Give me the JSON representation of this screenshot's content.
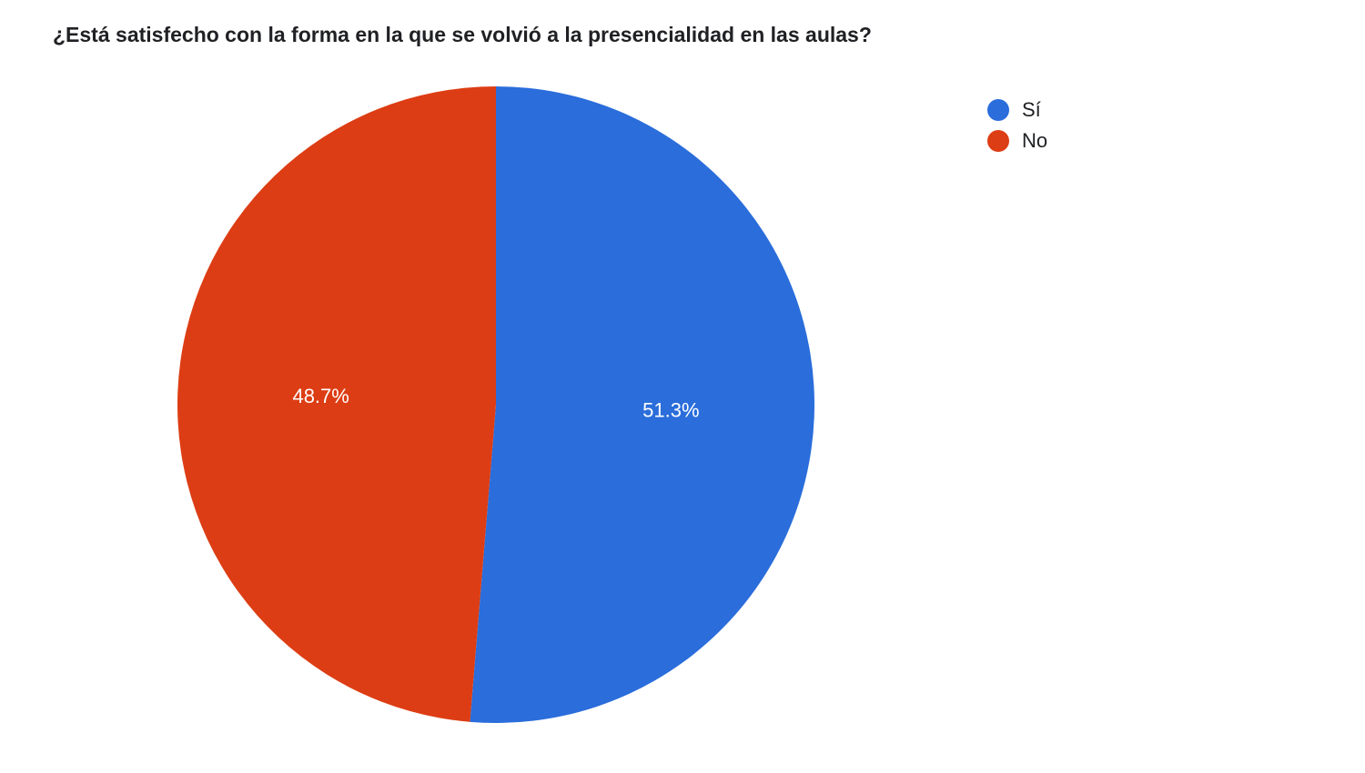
{
  "chart": {
    "type": "pie",
    "title": "¿Está satisfecho con la forma en la que se volvió a la presencialidad en las aulas?",
    "title_fontsize": 23,
    "title_color": "#202124",
    "background_color": "#ffffff",
    "radius": 350,
    "slices": [
      {
        "label": "Sí",
        "value": 51.3,
        "display": "51.3%",
        "color": "#2a6ddb"
      },
      {
        "label": "No",
        "value": 48.7,
        "display": "48.7%",
        "color": "#dd3d14"
      }
    ],
    "label_color": "#ffffff",
    "label_fontsize": 22
  },
  "legend": {
    "items": [
      {
        "label": "Sí",
        "color": "#2a6ddb"
      },
      {
        "label": "No",
        "color": "#dd3d14"
      }
    ],
    "swatch_radius": 12,
    "label_fontsize": 22,
    "label_color": "#202124"
  }
}
